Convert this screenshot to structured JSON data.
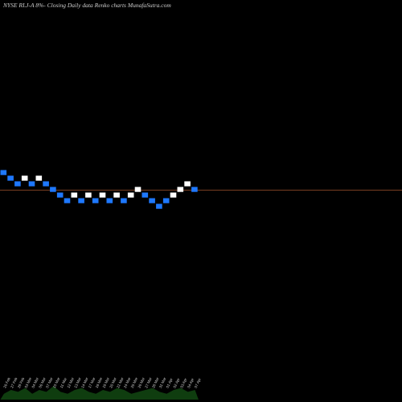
{
  "header": {
    "title": "NYSE RLJ-A 8%-  Closing Daily data  Renko  charts MunafaSutra.com"
  },
  "colors": {
    "background": "#000000",
    "up_brick": "#ffffff",
    "down_brick": "#1e78ff",
    "last_price_line": "#a0522d",
    "volume_fill": "#0f3d0f"
  },
  "chart_data": {
    "type": "renko",
    "title": "NYSE RLJ-A 8%-  Closing Daily data  Renko  charts MunafaSutra.com",
    "brick_levels": [
      5,
      4,
      3,
      4,
      3,
      4,
      3,
      2,
      1,
      0,
      1,
      0,
      1,
      0,
      1,
      0,
      1,
      0,
      1,
      2,
      1,
      0,
      -1,
      0,
      1,
      2,
      3,
      2
    ],
    "brick_colors": [
      "down",
      "down",
      "down",
      "up",
      "down",
      "up",
      "down",
      "down",
      "down",
      "down",
      "up",
      "down",
      "up",
      "down",
      "up",
      "down",
      "up",
      "down",
      "up",
      "up",
      "down",
      "down",
      "down",
      "down",
      "up",
      "up",
      "up",
      "down"
    ],
    "last_level": 2,
    "dates": [
      "26 Feb",
      "27 Feb",
      "28 Feb",
      "03 Mar",
      "04 Mar",
      "06 Mar",
      "07 Mar",
      "10 Mar",
      "11 Mar",
      "12 Mar",
      "13 Mar",
      "14 Mar",
      "17 Mar",
      "18 Mar",
      "19 Mar",
      "20 Mar",
      "21 Mar",
      "24 Mar",
      "25 Mar",
      "26 Mar",
      "27 Mar",
      "28 Mar",
      "31 Mar",
      "01 Apr",
      "02 Apr",
      "03 Apr",
      "04 Apr",
      "07 Apr"
    ],
    "volume": [
      3,
      5,
      4,
      6,
      3,
      5,
      4,
      7,
      4,
      3,
      5,
      6,
      4,
      3,
      5,
      4,
      6,
      5,
      3,
      4,
      5,
      6,
      4,
      3,
      5,
      6,
      4,
      5
    ]
  }
}
